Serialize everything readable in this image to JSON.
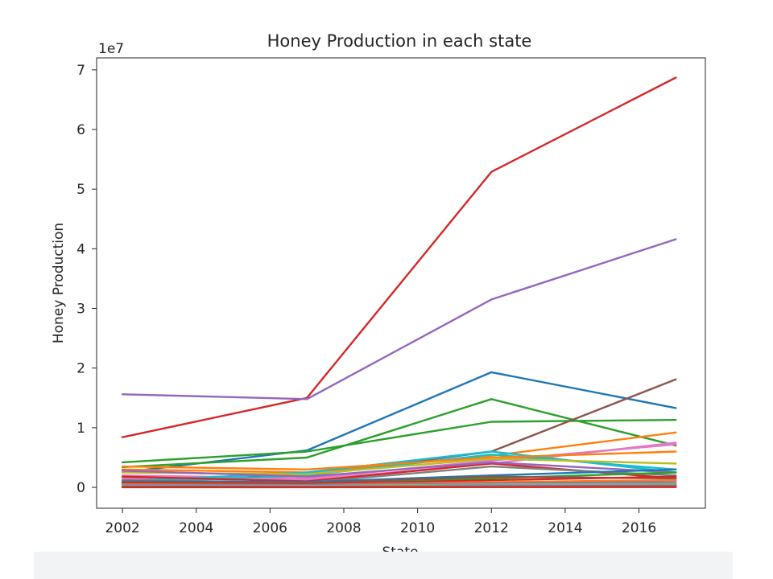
{
  "chart_data": {
    "type": "line",
    "title": "Honey Production in each state",
    "xlabel": "State",
    "ylabel": "Honey Production",
    "offset_text": "1e7",
    "x": [
      2002,
      2007,
      2012,
      2017
    ],
    "xlim": [
      2001.3,
      2017.8
    ],
    "ylim": [
      -3500000,
      72000000
    ],
    "xticks": [
      2002,
      2004,
      2006,
      2008,
      2010,
      2012,
      2014,
      2016
    ],
    "yticks": [
      0,
      10000000,
      20000000,
      30000000,
      40000000,
      50000000,
      60000000,
      70000000
    ],
    "ytick_labels": [
      "0",
      "1",
      "2",
      "3",
      "4",
      "5",
      "6",
      "7"
    ],
    "grid": false,
    "series": [
      {
        "color": "#d62728",
        "values": [
          8400000,
          15000000,
          52900000,
          68700000
        ]
      },
      {
        "color": "#9467bd",
        "values": [
          15600000,
          14800000,
          31500000,
          41600000
        ]
      },
      {
        "color": "#1f77b4",
        "values": [
          2500000,
          6200000,
          19300000,
          13300000
        ]
      },
      {
        "color": "#2ca02c",
        "values": [
          3400000,
          5000000,
          14800000,
          7000000
        ]
      },
      {
        "color": "#2ca02c",
        "values": [
          4200000,
          6000000,
          11000000,
          11300000
        ]
      },
      {
        "color": "#8c564b",
        "values": [
          1500000,
          2000000,
          6000000,
          18100000
        ]
      },
      {
        "color": "#ff7f0e",
        "values": [
          3000000,
          2500000,
          5300000,
          9200000
        ]
      },
      {
        "color": "#e377c2",
        "values": [
          2000000,
          1500000,
          4500000,
          7200000
        ]
      },
      {
        "color": "#e377c2",
        "values": [
          1500000,
          1200000,
          4000000,
          7500000
        ]
      },
      {
        "color": "#17becf",
        "values": [
          1000000,
          2500000,
          6000000,
          2500000
        ]
      },
      {
        "color": "#17becf",
        "values": [
          800000,
          2000000,
          5500000,
          3000000
        ]
      },
      {
        "color": "#ff7f0e",
        "values": [
          3500000,
          3000000,
          5000000,
          6000000
        ]
      },
      {
        "color": "#bcbd22",
        "values": [
          2500000,
          2200000,
          4800000,
          4000000
        ]
      },
      {
        "color": "#d62728",
        "values": [
          1800000,
          1000000,
          4000000,
          1500000
        ]
      },
      {
        "color": "#9467bd",
        "values": [
          2800000,
          1800000,
          4200000,
          2500000
        ]
      },
      {
        "color": "#7f7f7f",
        "values": [
          1200000,
          800000,
          3500000,
          2000000
        ]
      },
      {
        "color": "#2ca02c",
        "values": [
          600000,
          600000,
          1500000,
          2500000
        ]
      },
      {
        "color": "#1f77b4",
        "values": [
          1000000,
          900000,
          2000000,
          3000000
        ]
      },
      {
        "color": "#8c564b",
        "values": [
          900000,
          700000,
          1800000,
          1500000
        ]
      },
      {
        "color": "#d62728",
        "values": [
          700000,
          500000,
          1200000,
          1800000
        ]
      },
      {
        "color": "#ff7f0e",
        "values": [
          500000,
          400000,
          900000,
          1200000
        ]
      },
      {
        "color": "#9467bd",
        "values": [
          400000,
          350000,
          700000,
          900000
        ]
      },
      {
        "color": "#bcbd22",
        "values": [
          300000,
          250000,
          500000,
          600000
        ]
      },
      {
        "color": "#17becf",
        "values": [
          250000,
          200000,
          400000,
          500000
        ]
      },
      {
        "color": "#e377c2",
        "values": [
          200000,
          150000,
          300000,
          400000
        ]
      },
      {
        "color": "#7f7f7f",
        "values": [
          150000,
          100000,
          200000,
          300000
        ]
      },
      {
        "color": "#2ca02c",
        "values": [
          100000,
          80000,
          150000,
          200000
        ]
      },
      {
        "color": "#ff7f0e",
        "values": [
          60000,
          50000,
          100000,
          100000
        ]
      },
      {
        "color": "#1f77b4",
        "values": [
          40000,
          30000,
          60000,
          80000
        ]
      },
      {
        "color": "#d62728",
        "values": [
          20000,
          20000,
          40000,
          50000
        ]
      }
    ]
  }
}
